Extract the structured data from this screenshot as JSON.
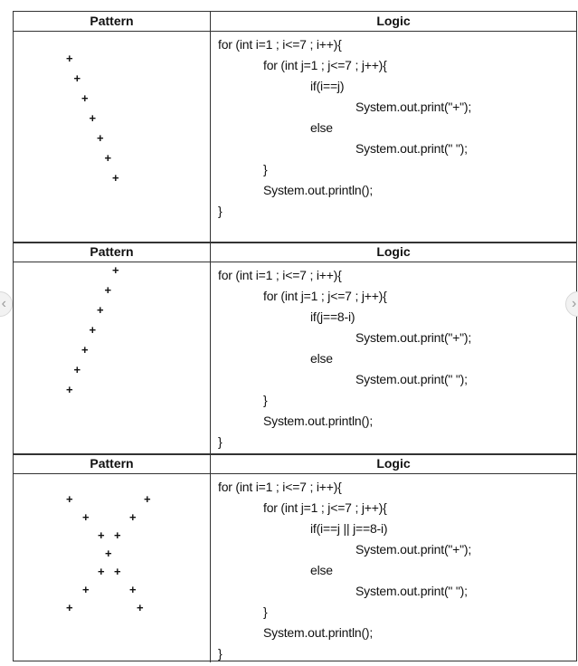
{
  "sections": [
    {
      "pattern_header": "Pattern",
      "logic_header": "Logic",
      "code": [
        "for (int i=1 ; i<=7 ; i++){",
        "for (int j=1 ; j<=7 ; j++){",
        "if(i==j)",
        "System.out.print(\"+\");",
        "else",
        "System.out.print(\" \");",
        "}",
        "System.out.println();",
        "}"
      ],
      "pattern_rows": [
        "+      ",
        " +     ",
        "  +    ",
        "   +   ",
        "    +  ",
        "     + ",
        "      +"
      ]
    },
    {
      "pattern_header": "Pattern",
      "logic_header": "Logic",
      "code": [
        "for (int i=1 ; i<=7 ; i++){",
        "for (int j=1 ; j<=7 ; j++){",
        "if(j==8-i)",
        "System.out.print(\"+\");",
        "else",
        "System.out.print(\" \");",
        "}",
        "System.out.println();",
        "}"
      ],
      "pattern_rows": [
        "      +",
        "     + ",
        "    +  ",
        "   +   ",
        "  +    ",
        " +     ",
        "+      "
      ]
    },
    {
      "pattern_header": "Pattern",
      "logic_header": "Logic",
      "code": [
        "for (int i=1 ; i<=7 ; i++){",
        "for (int j=1 ; j<=7 ; j++){",
        "if(i==j || j==8-i)",
        "System.out.print(\"+\");",
        "else",
        "System.out.print(\" \");",
        "}",
        "System.out.println();",
        "}"
      ],
      "pattern_rows": [
        "+     +",
        " +   + ",
        "  + +  ",
        "   +   ",
        "  + +  ",
        " +   + ",
        "+     +"
      ]
    }
  ],
  "nav": {
    "prev_icon": "chevron-left-icon",
    "next_icon": "chevron-right-icon"
  }
}
